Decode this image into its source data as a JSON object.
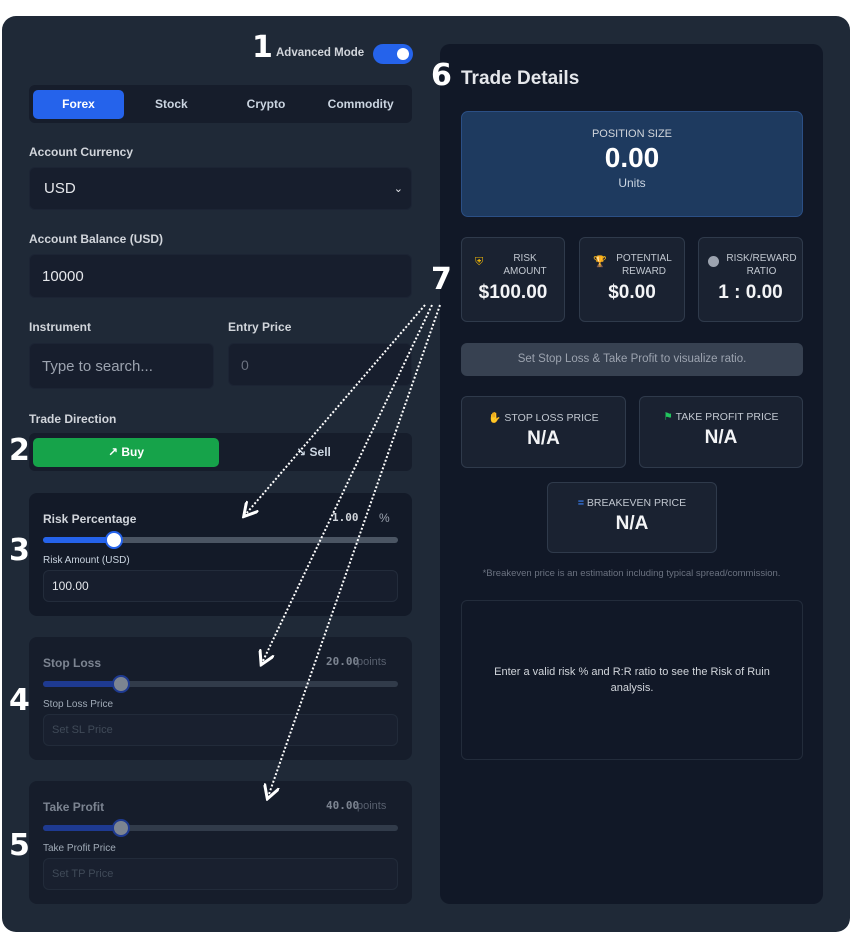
{
  "annotations": [
    "1",
    "2",
    "3",
    "4",
    "5",
    "6",
    "7"
  ],
  "advanced_mode": {
    "label": "Advanced Mode",
    "on": true
  },
  "asset_tabs": [
    {
      "label": "Forex",
      "active": true
    },
    {
      "label": "Stock"
    },
    {
      "label": "Crypto"
    },
    {
      "label": "Commodity"
    }
  ],
  "account_currency": {
    "label": "Account Currency",
    "value": "USD"
  },
  "account_balance": {
    "label": "Account Balance (USD)",
    "value": "10000"
  },
  "instrument": {
    "label": "Instrument",
    "placeholder": "Type to search..."
  },
  "entry_price": {
    "label": "Entry Price",
    "placeholder": "0"
  },
  "trade_direction": {
    "label": "Trade Direction",
    "buy": "Buy",
    "sell": "Sell",
    "selected": "Buy"
  },
  "risk": {
    "label": "Risk Percentage",
    "value": "1.00",
    "unit": "%",
    "slider_fraction": 0.2,
    "amount_label": "Risk Amount (USD)",
    "amount_value": "100.00"
  },
  "stop_loss": {
    "label": "Stop Loss",
    "value": "20.00",
    "unit": "points",
    "slider_fraction": 0.22,
    "price_label": "Stop Loss Price",
    "price_placeholder": "Set SL Price"
  },
  "take_profit": {
    "label": "Take Profit",
    "value": "40.00",
    "unit": "points",
    "slider_fraction": 0.22,
    "price_label": "Take Profit Price",
    "price_placeholder": "Set TP Price"
  },
  "details": {
    "title": "Trade Details",
    "position": {
      "label": "POSITION SIZE",
      "value": "0.00",
      "unit": "Units"
    },
    "risk_amount": {
      "label1": "RISK",
      "label2": "AMOUNT",
      "value": "$100.00"
    },
    "potential_reward": {
      "label1": "POTENTIAL",
      "label2": "REWARD",
      "value": "$0.00"
    },
    "rr_ratio": {
      "label1": "RISK/REWARD",
      "label2": "RATIO",
      "value": "1 : 0.00"
    },
    "ratio_hint": "Set Stop Loss & Take Profit to visualize ratio.",
    "sl_price": {
      "label": "STOP LOSS PRICE",
      "value": "N/A"
    },
    "tp_price": {
      "label": "TAKE PROFIT PRICE",
      "value": "N/A"
    },
    "be_price": {
      "label": "BREAKEVEN PRICE",
      "value": "N/A"
    },
    "be_note": "*Breakeven price is an estimation including typical spread/commission.",
    "ruin_msg": "Enter a valid risk % and R:R ratio to see the Risk of Ruin analysis."
  },
  "colors": {
    "accent": "#2563eb",
    "buy": "#16a34a",
    "panel": "#1f2937",
    "right_panel": "#111827"
  }
}
